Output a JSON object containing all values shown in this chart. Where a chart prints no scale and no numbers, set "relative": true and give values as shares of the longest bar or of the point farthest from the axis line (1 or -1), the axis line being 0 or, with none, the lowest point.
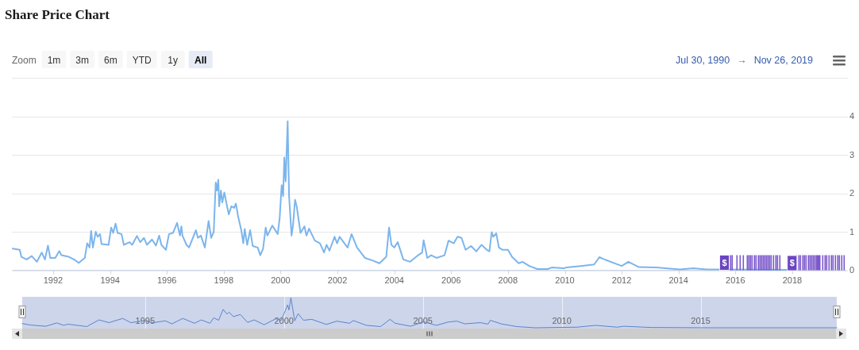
{
  "chart_data": [
    {
      "type": "line",
      "title": "Share Price Chart",
      "xlim": [
        "1990-07-30",
        "2019-11-26"
      ],
      "xticks": [
        "1992",
        "1994",
        "1996",
        "1998",
        "2000",
        "2002",
        "2004",
        "2006",
        "2008",
        "2010",
        "2012",
        "2014",
        "2016",
        "2018"
      ],
      "ylim": [
        0,
        5
      ],
      "yticks": [
        0,
        1,
        2,
        3,
        4,
        {
          "value": 5,
          "label": null
        }
      ],
      "grid": "y",
      "x": [
        "1990-07-30",
        "1990-10-29",
        "1990-11-18",
        "1991-01-26",
        "1991-04-01",
        "1991-06-06",
        "1991-08-07",
        "1991-09-17",
        "1991-10-26",
        "1991-11-25",
        "1992-01-28",
        "1992-03-20",
        "1992-04-15",
        "1992-07-19",
        "1992-09-24",
        "1992-11-25",
        "1993-02-10",
        "1993-03-13",
        "1993-04-12",
        "1993-05-03",
        "1993-05-25",
        "1993-07-01",
        "1993-07-26",
        "1993-08-25",
        "1993-09-13",
        "1993-12-13",
        "1994-01-15",
        "1994-02-10",
        "1994-03-13",
        "1994-04-08",
        "1994-05-28",
        "1994-06-27",
        "1994-09-09",
        "1994-10-12",
        "1994-12-13",
        "1995-01-23",
        "1995-03-13",
        "1995-04-19",
        "1995-06-24",
        "1995-08-14",
        "1995-09-24",
        "1995-10-23",
        "1995-12-20",
        "1996-01-28",
        "1996-03-20",
        "1996-05-11",
        "1996-06-17",
        "1996-07-05",
        "1996-07-19",
        "1996-09-09",
        "1996-10-12",
        "1997-01-08",
        "1997-02-03",
        "1997-03-13",
        "1997-05-03",
        "1997-06-20",
        "1997-07-23",
        "1997-08-25",
        "1997-09-20",
        "1997-10-05",
        "1997-10-23",
        "1997-11-03",
        "1997-11-25",
        "1997-12-13",
        "1998-01-08",
        "1998-03-06",
        "1998-04-08",
        "1998-05-14",
        "1998-06-06",
        "1998-07-05",
        "1998-08-14",
        "1998-09-09",
        "1998-09-27",
        "1998-10-29",
        "1998-12-06",
        "1999-01-08",
        "1999-03-13",
        "1999-04-15",
        "1999-05-21",
        "1999-06-24",
        "1999-07-15",
        "1999-09-17",
        "1999-11-25",
        "1999-12-20",
        "2000-01-15",
        "2000-02-03",
        "2000-02-18",
        "2000-03-06",
        "2000-04-01",
        "2000-04-19",
        "2000-05-21",
        "2000-06-09",
        "2000-07-05",
        "2000-07-26",
        "2000-09-13",
        "2000-11-03",
        "2000-11-28",
        "2001-01-01",
        "2001-03-16",
        "2001-05-21",
        "2001-07-12",
        "2001-08-14",
        "2001-09-20",
        "2001-11-25",
        "2001-12-27",
        "2002-01-28",
        "2002-03-20",
        "2002-05-11",
        "2002-07-01",
        "2002-09-09",
        "2002-12-20",
        "2003-04-01",
        "2003-06-24",
        "2003-09-20",
        "2003-10-26",
        "2003-11-25",
        "2004-01-01",
        "2004-02-14",
        "2004-04-26",
        "2004-07-23",
        "2004-11-03",
        "2004-12-24",
        "2005-01-12",
        "2005-02-28",
        "2005-04-19",
        "2005-06-27",
        "2005-10-08",
        "2005-11-28",
        "2006-02-03",
        "2006-03-24",
        "2006-05-14",
        "2006-07-05",
        "2006-09-13",
        "2006-11-21",
        "2007-01-26",
        "2007-04-05",
        "2007-05-07",
        "2007-06-06",
        "2007-06-27",
        "2007-08-03",
        "2007-09-06",
        "2007-10-26",
        "2008-01-01",
        "2008-02-21",
        "2008-05-18",
        "2008-07-05",
        "2008-10-01",
        "2009-01-12",
        "2009-05-25",
        "2009-07-15",
        "2009-12-17",
        "2010-01-19",
        "2010-07-23",
        "2011-01-12",
        "2011-03-20",
        "2011-05-25",
        "2012-01-01",
        "2012-03-27",
        "2012-08-10",
        "2013-03-20",
        "2014-01-19",
        "2014-07-08",
        "2014-12-28",
        "2015-06-13",
        "2017-10-30"
      ],
      "series": [
        {
          "color": "#7cb5ec",
          "values": [
            0.56,
            0.53,
            0.35,
            0.28,
            0.37,
            0.22,
            0.46,
            0.28,
            0.64,
            0.32,
            0.32,
            0.5,
            0.39,
            0.35,
            0.28,
            0.19,
            0.32,
            0.7,
            0.59,
            1.02,
            0.59,
            1.0,
            0.87,
            0.94,
            0.68,
            0.66,
            1.11,
            0.97,
            1.21,
            0.97,
            0.94,
            0.66,
            0.73,
            0.66,
            0.89,
            0.73,
            0.84,
            0.66,
            0.8,
            0.64,
            0.9,
            0.66,
            0.53,
            0.94,
            0.97,
            1.23,
            0.9,
            1.14,
            0.9,
            0.66,
            0.59,
            1.04,
            0.84,
            0.9,
            0.59,
            1.28,
            0.84,
            1.0,
            2.28,
            2.07,
            2.35,
            1.66,
            2.07,
            1.76,
            2.02,
            1.45,
            1.66,
            1.62,
            1.73,
            1.39,
            1.04,
            0.7,
            1.07,
            0.66,
            1.04,
            0.63,
            0.59,
            0.39,
            0.56,
            1.11,
            0.9,
            1.16,
            0.94,
            1.35,
            2.21,
            1.93,
            2.93,
            2.31,
            3.87,
            1.93,
            0.9,
            1.18,
            1.83,
            1.66,
            0.97,
            1.14,
            0.9,
            1.08,
            0.77,
            0.7,
            0.46,
            0.66,
            0.51,
            0.87,
            0.7,
            0.87,
            0.73,
            0.59,
            0.94,
            0.59,
            0.32,
            0.25,
            0.18,
            0.35,
            1.11,
            0.66,
            0.59,
            0.73,
            0.28,
            0.22,
            0.39,
            0.46,
            0.78,
            0.32,
            0.39,
            0.32,
            0.39,
            0.77,
            0.7,
            0.87,
            0.84,
            0.53,
            0.63,
            0.49,
            0.66,
            0.53,
            0.49,
            0.99,
            0.87,
            0.96,
            0.59,
            0.53,
            0.53,
            0.35,
            0.18,
            0.22,
            0.11,
            0.03,
            0.03,
            0.07,
            0.05,
            0.07,
            0.11,
            0.15,
            0.34,
            0.28,
            0.11,
            0.22,
            0.08,
            0.07,
            0.02,
            0.05,
            0.02,
            0.02,
            0.01
          ]
        }
      ],
      "annotations": [
        "Zoom",
        "1m",
        "3m",
        "6m",
        "YTD",
        "1y",
        "All",
        "Jul 30, 1990",
        "→",
        "Nov 26, 2019",
        {
          "text": "$",
          "x": "2015-06-13",
          "y": 0.02
        },
        {
          "text": "$",
          "x": "2017-10-30",
          "y": 0.01
        }
      ]
    },
    {
      "type": "line",
      "relative": true,
      "tick_labels": "x",
      "grid": "x",
      "xlim": [
        "1990-07-30",
        "2019-11-26"
      ],
      "xticks": [
        "1995",
        "2000",
        "2005",
        "2010",
        "2015"
      ],
      "x": [
        "1990-07-30",
        "1990-11-18",
        "1991-06-06",
        "1991-10-26",
        "1992-01-28",
        "1992-03-20",
        "1992-11-25",
        "1993-05-03",
        "1993-09-13",
        "1994-03-13",
        "1994-06-27",
        "1994-12-13",
        "1995-04-19",
        "1995-09-24",
        "1995-12-20",
        "1996-05-11",
        "1996-10-12",
        "1997-01-08",
        "1997-05-03",
        "1997-06-20",
        "1997-08-25",
        "1997-10-23",
        "1997-12-13",
        "1998-01-08",
        "1998-03-06",
        "1998-06-06",
        "1998-09-09",
        "1998-12-06",
        "1999-04-15",
        "1999-09-17",
        "1999-11-25",
        "2000-02-18",
        "2000-03-06",
        "2000-04-01",
        "2000-05-21",
        "2000-07-05",
        "2000-09-13",
        "2001-01-01",
        "2001-07-12",
        "2001-11-25",
        "2002-05-11",
        "2002-07-01",
        "2002-12-20",
        "2003-06-24",
        "2003-10-26",
        "2004-01-01",
        "2004-07-23",
        "2005-01-12",
        "2005-06-27",
        "2005-11-28",
        "2006-03-24",
        "2006-07-05",
        "2007-01-26",
        "2007-05-07",
        "2007-06-06",
        "2007-10-26",
        "2008-05-18",
        "2009-01-12",
        "2010-07-23",
        "2011-03-20",
        "2012-01-01",
        "2012-03-27",
        "2013-03-20",
        "2015-06-13",
        "2019-11-26"
      ],
      "series": [
        {
          "color": "#5a84cc",
          "values": [
            0.14,
            0.09,
            0.05,
            0.16,
            0.08,
            0.12,
            0.04,
            0.26,
            0.17,
            0.31,
            0.17,
            0.23,
            0.17,
            0.23,
            0.13,
            0.31,
            0.15,
            0.26,
            0.15,
            0.33,
            0.25,
            0.61,
            0.45,
            0.52,
            0.37,
            0.44,
            0.18,
            0.26,
            0.1,
            0.3,
            0.24,
            0.76,
            0.59,
            1,
            0.23,
            0.47,
            0.25,
            0.28,
            0.11,
            0.22,
            0.15,
            0.24,
            0.08,
            0.04,
            0.28,
            0.15,
            0.05,
            0.2,
            0.08,
            0.19,
            0.22,
            0.13,
            0.17,
            0.12,
            0.25,
            0.13,
            0.04,
            0,
            0.02,
            0.08,
            0.02,
            0.05,
            0.01,
            0,
            0
          ]
        }
      ]
    }
  ]
}
